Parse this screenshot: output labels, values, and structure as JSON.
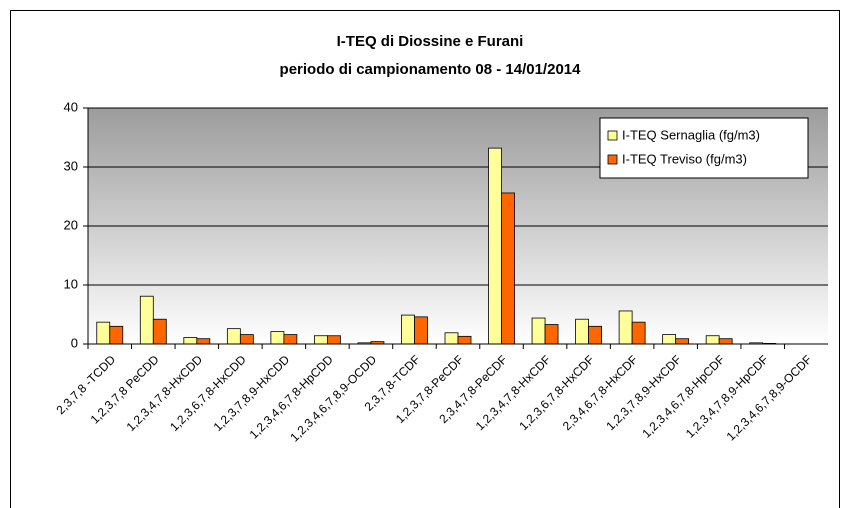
{
  "chart_data": {
    "type": "bar",
    "title": "I-TEQ di Diossine e Furani",
    "subtitle": "periodo di campionamento 08 - 14/01/2014",
    "categories": [
      "2,3,7,8 -TCDD",
      "1,2,3,7,8 PeCDD",
      "1,2,3,4,7,8-HxCDD",
      "1,2,3,6,7,8-HxCDD",
      "1,2,3,7,8,9-HxCDD",
      "1,2,3,4,6,7,8-HpCDD",
      "1,2,3,4,6,7,8,9-OCDD",
      "2,3,7,8-TCDF",
      "1,2,3,7,8-PeCDF",
      "2,3,4,7,8-PeCDF",
      "1,2,3,4,7,8-HxCDF",
      "1,2,3,6,7,8-HxCDF",
      "2,3,4,6,7,8-HxCDF",
      "1,2,3,7,8,9-HxCDF",
      "1,2,3,4,6,7,8-HpCDF",
      "1,2,3,4,7,8,9-HpCDF",
      "1,2,3,4,6,7,8,9-OCDF"
    ],
    "series": [
      {
        "name": "I-TEQ Sernaglia (fg/m3)",
        "color": "#ffff99",
        "values": [
          3.7,
          8.1,
          1.1,
          2.6,
          2.1,
          1.4,
          0.2,
          4.9,
          1.9,
          33.2,
          4.4,
          4.2,
          5.6,
          1.6,
          1.4,
          0.2,
          0
        ]
      },
      {
        "name": "I-TEQ Treviso (fg/m3)",
        "color": "#ff6600",
        "values": [
          3.0,
          4.2,
          0.9,
          1.6,
          1.6,
          1.4,
          0.4,
          4.6,
          1.3,
          25.6,
          3.3,
          3.0,
          3.7,
          0.9,
          0.9,
          0.1,
          0
        ]
      }
    ],
    "ylim": [
      0,
      40
    ],
    "yticks": [
      0,
      10,
      20,
      30,
      40
    ],
    "grid": true,
    "legend": "top-right"
  }
}
